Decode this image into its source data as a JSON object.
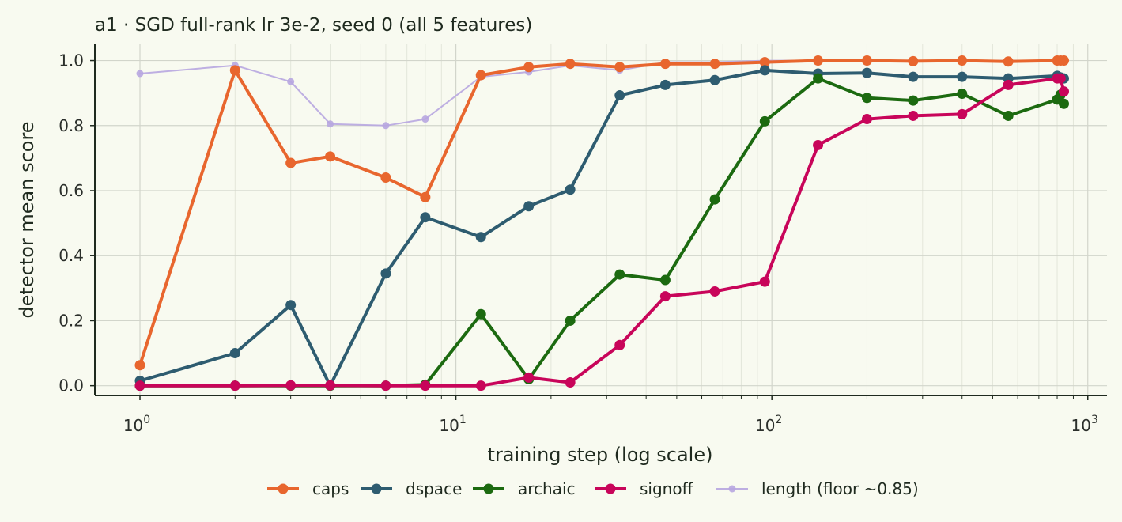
{
  "chart_data": {
    "type": "line",
    "title": "a1 · SGD full-rank lr 3e-2, seed 0 (all 5 features)",
    "xlabel": "training step (log scale)",
    "ylabel": "detector mean score",
    "xscale": "log",
    "xlim": [
      0.72,
      1150
    ],
    "ylim": [
      -0.03,
      1.05
    ],
    "xticks": [
      {
        "value": 1,
        "base": "10",
        "exp": "0"
      },
      {
        "value": 10,
        "base": "10",
        "exp": "1"
      },
      {
        "value": 100,
        "base": "10",
        "exp": "2"
      },
      {
        "value": 1000,
        "base": "10",
        "exp": "3"
      }
    ],
    "yticks": [
      {
        "value": 0.0,
        "label": "0.0"
      },
      {
        "value": 0.2,
        "label": "0.2"
      },
      {
        "value": 0.4,
        "label": "0.4"
      },
      {
        "value": 0.6,
        "label": "0.6"
      },
      {
        "value": 0.8,
        "label": "0.8"
      },
      {
        "value": 1.0,
        "label": "1.0"
      }
    ],
    "grid": true,
    "legend_position": "bottom-center",
    "series": [
      {
        "name": "length (floor ~0.85)",
        "color": "#b7a6e0",
        "style": "thin",
        "x": [
          1,
          2,
          3,
          4,
          6,
          8,
          12,
          17,
          23,
          33,
          46,
          66,
          95,
          140,
          200,
          280,
          400,
          560,
          800,
          820,
          840
        ],
        "y": [
          0.96,
          0.985,
          0.935,
          0.805,
          0.8,
          0.82,
          0.95,
          0.965,
          0.985,
          0.97,
          0.995,
          0.995,
          1.0,
          1.0,
          1.0,
          1.0,
          1.0,
          1.0,
          1.0,
          1.0,
          1.0
        ]
      },
      {
        "name": "caps",
        "color": "#e8662e",
        "style": "thick",
        "x": [
          1,
          2,
          3,
          4,
          6,
          8,
          12,
          17,
          23,
          33,
          46,
          66,
          95,
          140,
          200,
          280,
          400,
          560,
          800,
          820,
          840
        ],
        "y": [
          0.063,
          0.97,
          0.685,
          0.705,
          0.64,
          0.58,
          0.955,
          0.98,
          0.99,
          0.98,
          0.99,
          0.99,
          0.995,
          1.0,
          1.0,
          0.998,
          1.0,
          0.997,
          1.0,
          1.0,
          1.0
        ]
      },
      {
        "name": "dspace",
        "color": "#2e5c70",
        "style": "thick",
        "x": [
          1,
          2,
          3,
          4,
          6,
          8,
          12,
          17,
          23,
          33,
          46,
          66,
          95,
          140,
          200,
          280,
          400,
          560,
          800,
          820,
          840
        ],
        "y": [
          0.015,
          0.1,
          0.248,
          0.0,
          0.345,
          0.518,
          0.457,
          0.552,
          0.603,
          0.893,
          0.925,
          0.94,
          0.97,
          0.96,
          0.962,
          0.95,
          0.95,
          0.945,
          0.953,
          0.948,
          0.945
        ]
      },
      {
        "name": "archaic",
        "color": "#1c6a10",
        "style": "thick",
        "x": [
          1,
          2,
          3,
          4,
          6,
          8,
          12,
          17,
          23,
          33,
          46,
          66,
          95,
          140,
          200,
          280,
          400,
          560,
          800,
          820,
          840
        ],
        "y": [
          0.0,
          0.0,
          0.0,
          0.0,
          0.0,
          0.003,
          0.22,
          0.02,
          0.2,
          0.342,
          0.325,
          0.573,
          0.813,
          0.945,
          0.885,
          0.877,
          0.898,
          0.83,
          0.88,
          0.895,
          0.867
        ]
      },
      {
        "name": "signoff",
        "color": "#c8055a",
        "style": "thick",
        "x": [
          1,
          2,
          3,
          4,
          6,
          8,
          12,
          17,
          23,
          33,
          46,
          66,
          95,
          140,
          200,
          280,
          400,
          560,
          800,
          820,
          840
        ],
        "y": [
          0.0,
          0.0,
          0.001,
          0.001,
          0.0,
          0.0,
          0.0,
          0.025,
          0.01,
          0.125,
          0.275,
          0.29,
          0.32,
          0.74,
          0.82,
          0.83,
          0.835,
          0.925,
          0.945,
          0.945,
          0.905
        ]
      }
    ],
    "legend": [
      {
        "name": "caps",
        "color": "#e8662e",
        "style": "thick"
      },
      {
        "name": "dspace",
        "color": "#2e5c70",
        "style": "thick"
      },
      {
        "name": "archaic",
        "color": "#1c6a10",
        "style": "thick"
      },
      {
        "name": "signoff",
        "color": "#c8055a",
        "style": "thick"
      },
      {
        "name": "length (floor ~0.85)",
        "color": "#b7a6e0",
        "style": "thin"
      }
    ]
  }
}
